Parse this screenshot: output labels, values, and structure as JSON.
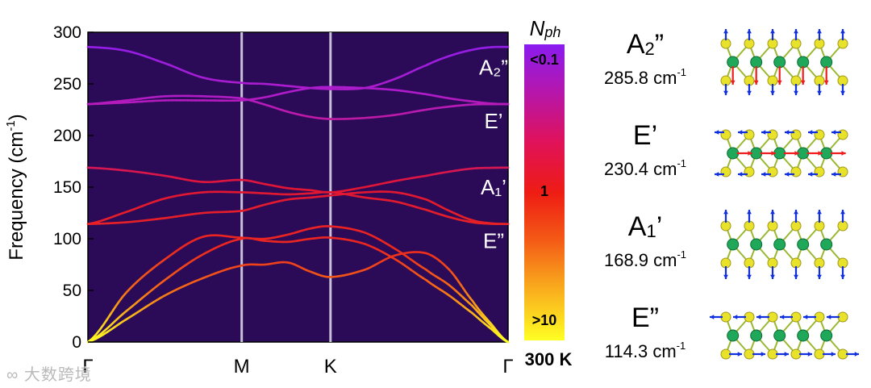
{
  "chart_data": {
    "type": "line",
    "title": "",
    "xlabel": "",
    "ylabel": "Frequency (cm-1)",
    "ylabel_main": "Frequency (cm",
    "ylabel_sup": "-1",
    "ylabel_close": ")",
    "ylim": [
      0,
      300
    ],
    "yticks": [
      0,
      50,
      100,
      150,
      200,
      250,
      300
    ],
    "xticks": [
      "Γ",
      "M",
      "K",
      "Γ"
    ],
    "background_color": "#2b0b57",
    "path_ticks_x": [
      0,
      1,
      1.5776,
      2.7323
    ],
    "series": [
      {
        "name": "band-1",
        "x": [
          0,
          0.25,
          0.5,
          0.75,
          1,
          1.15,
          1.3,
          1.45,
          1.5776,
          1.8,
          2.0,
          2.2,
          2.35,
          2.5,
          2.62,
          2.7323
        ],
        "values": [
          0,
          22,
          45,
          62,
          74,
          75,
          77,
          68,
          63,
          70,
          84,
          86,
          70,
          40,
          18,
          0
        ]
      },
      {
        "name": "band-2",
        "x": [
          0,
          0.25,
          0.5,
          0.75,
          1,
          1.15,
          1.3,
          1.45,
          1.5776,
          1.8,
          2.0,
          2.2,
          2.35,
          2.5,
          2.62,
          2.7323
        ],
        "values": [
          0,
          30,
          60,
          85,
          100,
          98,
          97,
          100,
          101,
          95,
          80,
          60,
          45,
          28,
          13,
          0
        ]
      },
      {
        "name": "band-3",
        "x": [
          0,
          0.25,
          0.5,
          0.75,
          1,
          1.15,
          1.3,
          1.45,
          1.5776,
          1.8,
          2.0,
          2.2,
          2.35,
          2.5,
          2.62,
          2.7323
        ],
        "values": [
          0,
          48,
          80,
          102,
          101,
          100,
          104,
          110,
          112,
          106,
          90,
          70,
          55,
          35,
          16,
          0
        ]
      },
      {
        "name": "band-4",
        "x": [
          0,
          0.25,
          0.5,
          0.75,
          1,
          1.15,
          1.3,
          1.45,
          1.5776,
          1.8,
          2.0,
          2.2,
          2.35,
          2.5,
          2.62,
          2.7323
        ],
        "values": [
          114.3,
          116,
          120,
          125,
          127,
          133,
          138,
          140,
          142,
          145,
          145,
          138,
          127,
          118,
          115,
          114.3
        ]
      },
      {
        "name": "band-5",
        "x": [
          0,
          0.25,
          0.5,
          0.75,
          1,
          1.15,
          1.3,
          1.45,
          1.5776,
          1.8,
          2.0,
          2.2,
          2.35,
          2.5,
          2.62,
          2.7323
        ],
        "values": [
          114.3,
          126,
          139,
          145,
          145,
          144,
          143,
          144,
          145,
          140,
          136,
          128,
          121,
          116,
          114.5,
          114.3
        ]
      },
      {
        "name": "band-6",
        "x": [
          0,
          0.25,
          0.5,
          0.75,
          1,
          1.15,
          1.3,
          1.45,
          1.5776,
          1.8,
          2.0,
          2.2,
          2.35,
          2.5,
          2.62,
          2.7323
        ],
        "values": [
          168.9,
          166,
          161,
          155,
          157,
          153,
          149,
          147,
          145,
          150,
          156,
          161,
          165,
          168,
          168.7,
          168.9
        ]
      },
      {
        "name": "band-7",
        "x": [
          0,
          0.25,
          0.5,
          0.75,
          1,
          1.15,
          1.3,
          1.45,
          1.5776,
          1.8,
          2.0,
          2.2,
          2.35,
          2.5,
          2.62,
          2.7323
        ],
        "values": [
          230.4,
          232,
          234,
          234,
          234,
          237,
          242,
          246,
          247,
          246,
          244,
          240,
          236,
          233,
          231,
          230.4
        ]
      },
      {
        "name": "band-8",
        "x": [
          0,
          0.25,
          0.5,
          0.75,
          1,
          1.15,
          1.3,
          1.45,
          1.5776,
          1.8,
          2.0,
          2.2,
          2.35,
          2.5,
          2.62,
          2.7323
        ],
        "values": [
          230.4,
          234,
          238,
          238,
          236,
          230,
          223,
          218,
          216,
          217,
          220,
          225,
          228,
          230,
          230.3,
          230.4
        ]
      },
      {
        "name": "band-9",
        "x": [
          0,
          0.25,
          0.5,
          0.75,
          1,
          1.15,
          1.3,
          1.45,
          1.5776,
          1.8,
          2.0,
          2.2,
          2.35,
          2.5,
          2.62,
          2.7323
        ],
        "values": [
          285.8,
          282,
          270,
          256,
          251,
          250,
          248,
          246,
          245,
          246,
          255,
          268,
          277,
          283,
          285.5,
          285.8
        ]
      }
    ],
    "annotations": [
      {
        "text": "A₂”",
        "y": 266
      },
      {
        "text": "E’",
        "y": 214
      },
      {
        "text": "A₁’",
        "y": 150
      },
      {
        "text": "E”",
        "y": 98
      }
    ],
    "colorbar": {
      "title": "Nph",
      "title_main": "N",
      "title_sub": "ph",
      "labels": [
        "<0.1",
        "1",
        ">10"
      ],
      "temperature": "300 K",
      "colors": [
        "#8a1cf0",
        "#b816a8",
        "#e0125a",
        "#ee1c14",
        "#f45a16",
        "#f8a01c",
        "#fcd820",
        "#ffff24"
      ]
    }
  },
  "modes": [
    {
      "label": "A",
      "sub": "2",
      "prime": "”",
      "freq": "285.8 cm",
      "unit_sup": "-1",
      "kind": "A2pp"
    },
    {
      "label": "E",
      "sub": "",
      "prime": "’",
      "freq": "230.4 cm",
      "unit_sup": "-1",
      "kind": "Ep"
    },
    {
      "label": "A",
      "sub": "1",
      "prime": "’",
      "freq": "168.9 cm",
      "unit_sup": "-1",
      "kind": "A1p"
    },
    {
      "label": "E",
      "sub": "",
      "prime": "”",
      "freq": "114.3 cm",
      "unit_sup": "-1",
      "kind": "Epp"
    }
  ],
  "colors": {
    "green_atom": "#1fa85a",
    "yellow_atom": "#e8e22a",
    "arrow_blue": "#1030e0",
    "arrow_red": "#ee1c1c"
  },
  "watermark": "大数跨境"
}
